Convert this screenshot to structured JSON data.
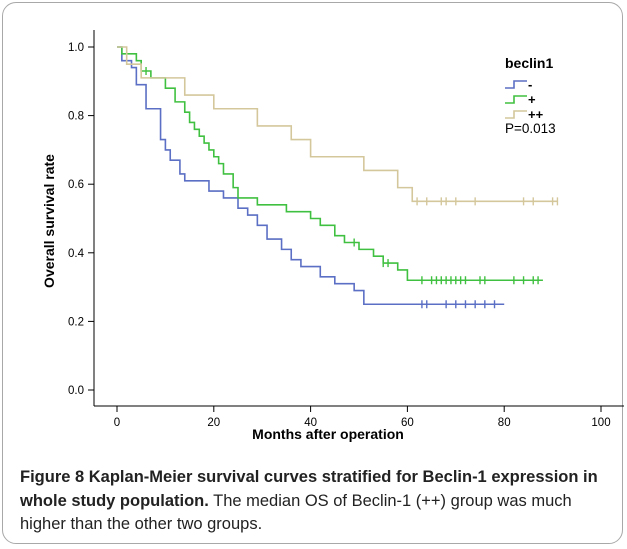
{
  "chart_data": {
    "type": "line",
    "step": true,
    "xlabel": "Months after operation",
    "ylabel": "Overall survival rate",
    "xlim": [
      0,
      100
    ],
    "ylim": [
      0.0,
      1.0
    ],
    "x_ticks": [
      0,
      20,
      40,
      60,
      80,
      100
    ],
    "y_ticks": [
      0.0,
      0.2,
      0.4,
      0.6,
      0.8,
      1.0
    ],
    "y_tick_labels": [
      "0.0",
      "0.2",
      "0.4",
      "0.6",
      "0.8",
      "1.0"
    ],
    "legend_title": "beclin1",
    "legend_position": "top-right",
    "annotation": "P=0.013",
    "series": [
      {
        "name": "-",
        "color": "#5b6fc4",
        "points": [
          [
            0,
            1.0
          ],
          [
            1,
            0.96
          ],
          [
            3,
            0.94
          ],
          [
            4,
            0.89
          ],
          [
            6,
            0.82
          ],
          [
            9,
            0.73
          ],
          [
            10,
            0.7
          ],
          [
            11,
            0.67
          ],
          [
            13,
            0.63
          ],
          [
            14,
            0.61
          ],
          [
            19,
            0.58
          ],
          [
            22,
            0.56
          ],
          [
            25,
            0.53
          ],
          [
            27,
            0.51
          ],
          [
            29,
            0.48
          ],
          [
            31,
            0.44
          ],
          [
            34,
            0.41
          ],
          [
            36,
            0.38
          ],
          [
            38,
            0.36
          ],
          [
            42,
            0.33
          ],
          [
            45,
            0.31
          ],
          [
            49,
            0.29
          ],
          [
            51,
            0.25
          ],
          [
            80,
            0.25
          ]
        ],
        "censor_x": [
          63,
          64,
          68,
          70,
          72,
          74,
          76,
          78
        ]
      },
      {
        "name": "+",
        "color": "#40c040",
        "points": [
          [
            0,
            1.0
          ],
          [
            1,
            0.98
          ],
          [
            4,
            0.96
          ],
          [
            5,
            0.93
          ],
          [
            7,
            0.91
          ],
          [
            10,
            0.88
          ],
          [
            12,
            0.84
          ],
          [
            14,
            0.81
          ],
          [
            15,
            0.78
          ],
          [
            16,
            0.76
          ],
          [
            17,
            0.74
          ],
          [
            18,
            0.72
          ],
          [
            19,
            0.7
          ],
          [
            20,
            0.68
          ],
          [
            21,
            0.66
          ],
          [
            22,
            0.63
          ],
          [
            24,
            0.59
          ],
          [
            25,
            0.56
          ],
          [
            29,
            0.54
          ],
          [
            35,
            0.52
          ],
          [
            40,
            0.5
          ],
          [
            42,
            0.48
          ],
          [
            45,
            0.45
          ],
          [
            47,
            0.43
          ],
          [
            50,
            0.41
          ],
          [
            53,
            0.39
          ],
          [
            55,
            0.37
          ],
          [
            58,
            0.35
          ],
          [
            60,
            0.32
          ],
          [
            88,
            0.32
          ]
        ],
        "censor_x": [
          6,
          49,
          55,
          56,
          63,
          65,
          66,
          67,
          68,
          69,
          70,
          71,
          72,
          75,
          76,
          82,
          84,
          86,
          87
        ]
      },
      {
        "name": "++",
        "color": "#d4c79c",
        "points": [
          [
            0,
            1.0
          ],
          [
            2,
            0.95
          ],
          [
            5,
            0.91
          ],
          [
            14,
            0.86
          ],
          [
            20,
            0.82
          ],
          [
            29,
            0.77
          ],
          [
            36,
            0.73
          ],
          [
            40,
            0.68
          ],
          [
            51,
            0.64
          ],
          [
            58,
            0.59
          ],
          [
            61,
            0.55
          ],
          [
            91,
            0.55
          ]
        ],
        "censor_x": [
          62,
          64,
          67,
          68,
          70,
          74,
          84,
          86,
          90,
          91
        ]
      }
    ]
  },
  "caption": {
    "bold": "Figure 8 Kaplan-Meier survival curves stratified for Beclin-1 expression in whole study population.",
    "normal": " The median OS of Beclin-1 (++) group was much higher than the other two groups."
  }
}
